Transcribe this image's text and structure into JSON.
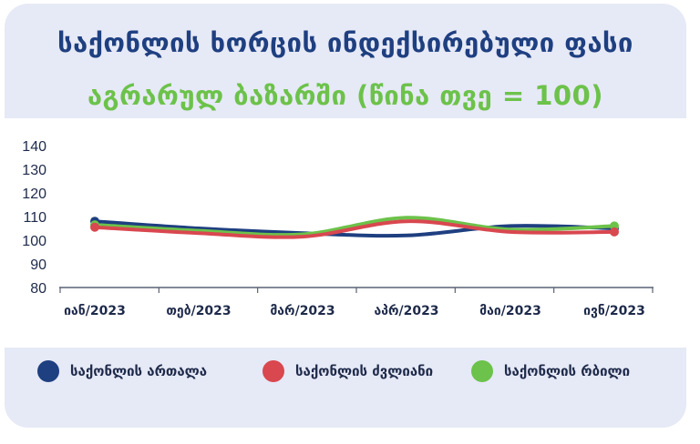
{
  "header": {
    "title": "საქონლის ხორცის ინდექსირებული ფასი",
    "subtitle": "აგრარულ ბაზარში (წინა თვე = 100)"
  },
  "colors": {
    "title": "#1e3f80",
    "subtitle": "#6cc24a",
    "series": [
      "#1e3f80",
      "#d9474f",
      "#6cc24a"
    ]
  },
  "legend": {
    "items": [
      {
        "label": "საქონლის ართალა",
        "color": "#1e3f80"
      },
      {
        "label": "საქონლის ძვლიანი",
        "color": "#d9474f"
      },
      {
        "label": "საქონლის რბილი",
        "color": "#6cc24a"
      }
    ]
  },
  "chart_data": {
    "type": "line",
    "title": "საქონლის ხორცის ინდექსირებული ფასი",
    "subtitle": "აგრარულ ბაზარში (წინა თვე = 100)",
    "categories": [
      "იან/2023",
      "თებ/2023",
      "მარ/2023",
      "აპრ/2023",
      "მაი/2023",
      "ივნ/2023"
    ],
    "series": [
      {
        "name": "საქონლის ართალა",
        "color": "#1e3f80",
        "values": [
          108,
          105,
          103,
          102,
          106,
          105
        ]
      },
      {
        "name": "საქონლის ძვლიანი",
        "color": "#d9474f",
        "values": [
          105.5,
          103,
          101.5,
          108,
          103.5,
          103.5
        ]
      },
      {
        "name": "საქონლის რბილი",
        "color": "#6cc24a",
        "values": [
          106.5,
          104,
          102.5,
          109.5,
          104.5,
          106
        ]
      }
    ],
    "yticks": [
      80,
      90,
      100,
      110,
      120,
      130,
      140
    ],
    "ylim": [
      80,
      140
    ],
    "grid": false,
    "legend_position": "bottom"
  }
}
